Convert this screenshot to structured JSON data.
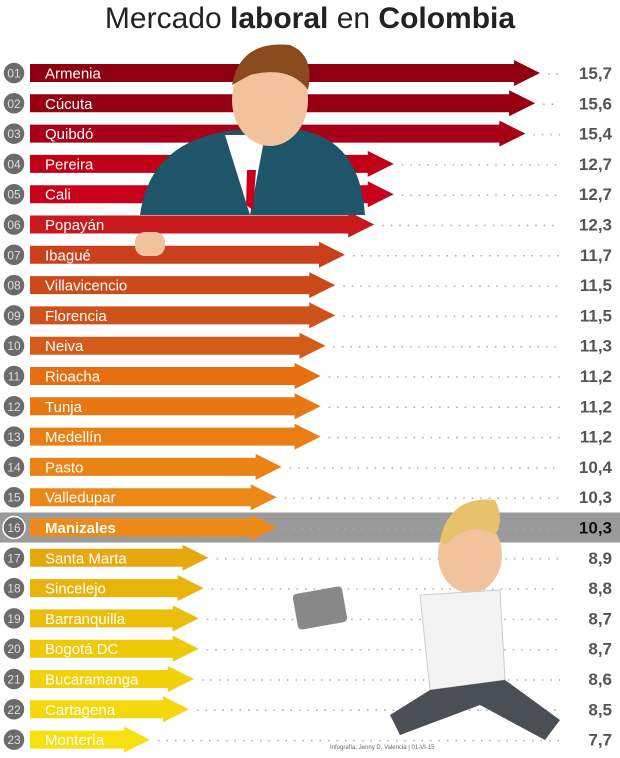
{
  "title": {
    "part1": "Mercado ",
    "part2": "laboral",
    "part3": " en ",
    "part4": "Colombia"
  },
  "credit": "Infografía: Jenny D. Valencia | 01-VI-15",
  "highlight_rank": 16,
  "chart_data": {
    "type": "bar",
    "orientation": "horizontal",
    "title": "Mercado laboral en Colombia",
    "ranks": [
      "01",
      "02",
      "03",
      "04",
      "05",
      "06",
      "07",
      "08",
      "09",
      "10",
      "11",
      "12",
      "13",
      "14",
      "15",
      "16",
      "17",
      "18",
      "19",
      "20",
      "21",
      "22",
      "23"
    ],
    "categories": [
      "Armenia",
      "Cúcuta",
      "Quibdó",
      "Pereira",
      "Cali",
      "Popayán",
      "Ibagué",
      "Villavicencio",
      "Florencia",
      "Neiva",
      "Rioacha",
      "Tunja",
      "Medellín",
      "Pasto",
      "Valledupar",
      "Manizales",
      "Santa Marta",
      "Sincelejo",
      "Barranquilla",
      "Bogotá DC",
      "Bucaramanga",
      "Cartagena",
      "Montería"
    ],
    "values": [
      15.7,
      15.6,
      15.4,
      12.7,
      12.7,
      12.3,
      11.7,
      11.5,
      11.5,
      11.3,
      11.2,
      11.2,
      11.2,
      10.4,
      10.3,
      10.3,
      8.9,
      8.8,
      8.7,
      8.7,
      8.6,
      8.5,
      7.7
    ],
    "value_labels": [
      "15,7",
      "15,6",
      "15,4",
      "12,7",
      "12,7",
      "12,3",
      "11,7",
      "11,5",
      "11,5",
      "11,3",
      "11,2",
      "11,2",
      "11,2",
      "10,4",
      "10,3",
      "10,3",
      "8,9",
      "8,8",
      "8,7",
      "8,7",
      "8,6",
      "8,5",
      "7,7"
    ],
    "colors": [
      "#8e0010",
      "#950012",
      "#a80016",
      "#c10018",
      "#c8001c",
      "#c81a1c",
      "#c9401c",
      "#cc4a1a",
      "#cf521a",
      "#d35c18",
      "#e46e10",
      "#e87812",
      "#ea7e12",
      "#ea8214",
      "#ec8816",
      "#ee8a18",
      "#e6a80e",
      "#e8b40c",
      "#ebbe0a",
      "#efc808",
      "#f2d00a",
      "#f4d80c",
      "#f6e010"
    ]
  }
}
